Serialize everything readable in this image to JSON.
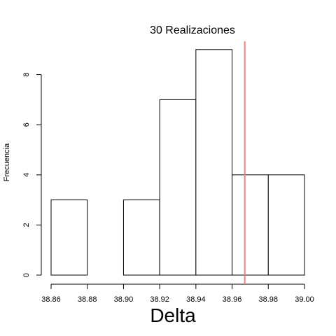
{
  "chart_data": {
    "type": "bar",
    "title": "30 Realizaciones",
    "xlabel": "Delta",
    "ylabel": "Frecuencia",
    "bins": [
      {
        "start": 38.86,
        "end": 38.88,
        "count": 3
      },
      {
        "start": 38.88,
        "end": 38.9,
        "count": 0
      },
      {
        "start": 38.9,
        "end": 38.92,
        "count": 3
      },
      {
        "start": 38.92,
        "end": 38.94,
        "count": 7
      },
      {
        "start": 38.94,
        "end": 38.96,
        "count": 9
      },
      {
        "start": 38.96,
        "end": 38.98,
        "count": 4
      },
      {
        "start": 38.98,
        "end": 39.0,
        "count": 4
      }
    ],
    "xlim": [
      38.86,
      39.0
    ],
    "ylim": [
      0,
      9
    ],
    "xticks": [
      "38.86",
      "38.88",
      "38.90",
      "38.92",
      "38.94",
      "38.96",
      "38.98",
      "39.00"
    ],
    "yticks": [
      "0",
      "2",
      "4",
      "6",
      "8"
    ],
    "reference_line": {
      "x": 38.967,
      "color": "#f08080"
    },
    "grid": false,
    "bar_fill": "#ffffff",
    "bar_stroke": "#000000"
  }
}
